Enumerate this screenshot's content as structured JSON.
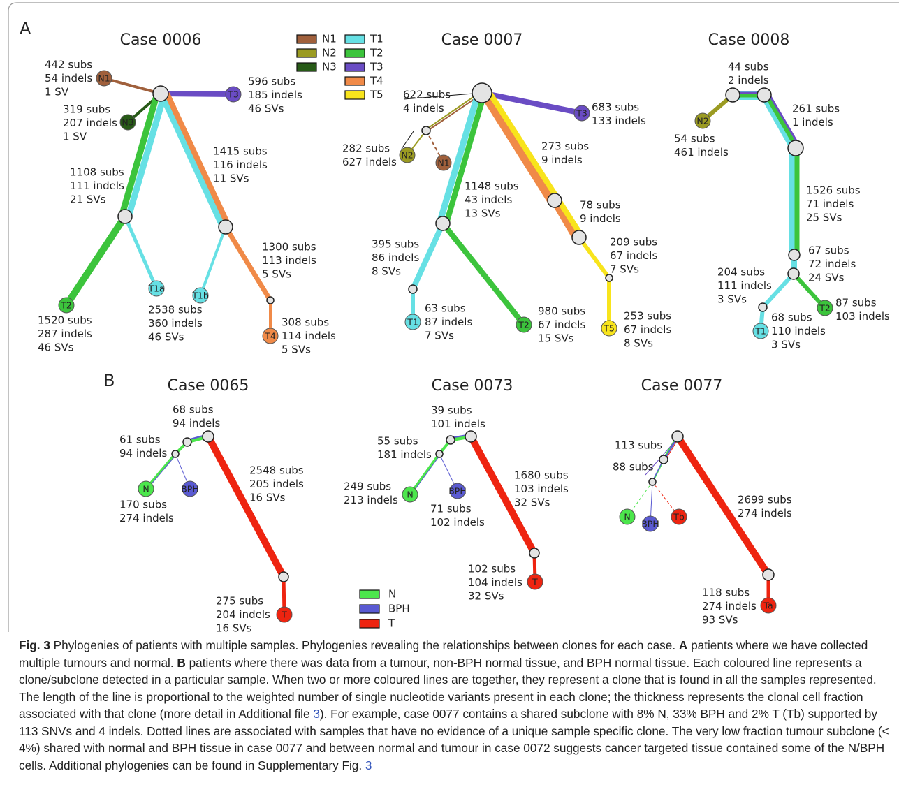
{
  "panels": [
    {
      "label": "A",
      "cases": [
        {
          "title": "Case 0006",
          "nodes": [
            "N1",
            "N3",
            "T3",
            "T2",
            "T1a",
            "T1b",
            "T4"
          ],
          "annotations": [
            [
              "442 subs",
              "54 indels",
              "1 SV"
            ],
            [
              "319 subs",
              "207 indels",
              "1 SV"
            ],
            [
              "596 subs",
              "185 indels",
              "46 SVs"
            ],
            [
              "1415 subs",
              "116 indels",
              "11 SVs"
            ],
            [
              "1108 subs",
              "111 indels",
              "21 SVs"
            ],
            [
              "1300 subs",
              "113 indels",
              "5 SVs"
            ],
            [
              "2538 subs",
              "360 indels",
              "46 SVs"
            ],
            [
              "1520 subs",
              "287 indels",
              "46 SVs"
            ],
            [
              "308 subs",
              "114 indels",
              "5 SVs"
            ]
          ]
        },
        {
          "title": "Case 0007",
          "nodes": [
            "T3",
            "N2",
            "N1",
            "T1",
            "T2",
            "T5"
          ],
          "annotations": [
            [
              "622 subs",
              "4 indels"
            ],
            [
              "282 subs",
              "627 indels"
            ],
            [
              "683 subs",
              "133 indels"
            ],
            [
              "273 subs",
              "9 indels"
            ],
            [
              "1148 subs",
              "43 indels",
              "13 SVs"
            ],
            [
              "78 subs",
              "9 indels"
            ],
            [
              "395 subs",
              "86 indels",
              "8 SVs"
            ],
            [
              "209 subs",
              "67 indels",
              "7 SVs"
            ],
            [
              "63 subs",
              "87 indels",
              "7 SVs"
            ],
            [
              "980 subs",
              "67 indels",
              "15 SVs"
            ],
            [
              "253 subs",
              "67 indels",
              "8 SVs"
            ]
          ]
        },
        {
          "title": "Case 0008",
          "nodes": [
            "N2",
            "T1",
            "T2"
          ],
          "annotations": [
            [
              "44 subs",
              "2 indels"
            ],
            [
              "261 subs",
              "1 indels"
            ],
            [
              "54 subs",
              "461 indels"
            ],
            [
              "1526 subs",
              "71 indels",
              "25 SVs"
            ],
            [
              "67 subs",
              "72 indels",
              "24 SVs"
            ],
            [
              "204 subs",
              "111 indels",
              "3 SVs"
            ],
            [
              "68 subs",
              "110 indels",
              "3 SVs"
            ],
            [
              "87 subs",
              "103 indels"
            ]
          ]
        }
      ]
    },
    {
      "label": "B",
      "cases": [
        {
          "title": "Case 0065",
          "nodes": [
            "N",
            "BPH",
            "T"
          ],
          "annotations": [
            [
              "68 subs",
              "94 indels"
            ],
            [
              "61 subs",
              "94 indels"
            ],
            [
              "2548 subs",
              "205 indels",
              "16 SVs"
            ],
            [
              "170 subs",
              "274 indels"
            ],
            [
              "275 subs",
              "204 indels",
              "16 SVs"
            ]
          ]
        },
        {
          "title": "Case 0073",
          "nodes": [
            "N",
            "BPH",
            "T"
          ],
          "annotations": [
            [
              "39 subs",
              "101 indels"
            ],
            [
              "55 subs",
              "181 indels"
            ],
            [
              "249 subs",
              "213 indels"
            ],
            [
              "1680 subs",
              "103 indels",
              "32 SVs"
            ],
            [
              "71 subs",
              "102 indels"
            ],
            [
              "102 subs",
              "104 indels",
              "32 SVs"
            ]
          ]
        },
        {
          "title": "Case 0077",
          "nodes": [
            "N",
            "BPH",
            "Tb",
            "Ta"
          ],
          "annotations": [
            [
              "113 subs"
            ],
            [
              "88 subs"
            ],
            [
              "2699 subs",
              "274 indels"
            ],
            [
              "118 subs",
              "274 indels",
              "93 SVs"
            ]
          ]
        }
      ]
    }
  ],
  "legend_a": [
    {
      "name": "N1",
      "color": "#a0603c"
    },
    {
      "name": "N2",
      "color": "#9b9b22"
    },
    {
      "name": "N3",
      "color": "#275a17"
    },
    {
      "name": "T1",
      "color": "#66e0e4"
    },
    {
      "name": "T2",
      "color": "#3cc43c"
    },
    {
      "name": "T3",
      "color": "#6a4cc4"
    },
    {
      "name": "T4",
      "color": "#f08a48"
    },
    {
      "name": "T5",
      "color": "#f8e41c"
    }
  ],
  "legend_b": [
    {
      "name": "N",
      "color": "#4ce64c"
    },
    {
      "name": "BPH",
      "color": "#5a5ad2"
    },
    {
      "name": "T",
      "color": "#ee2410"
    }
  ],
  "caption": [
    {
      "text": "Fig. 3",
      "bold": true
    },
    {
      "text": "  Phylogenies of patients with multiple samples. Phylogenies revealing the relationships between clones for each case. "
    },
    {
      "text": "A",
      "bold": true
    },
    {
      "text": " patients where we have collected multiple tumours and normal. "
    },
    {
      "text": "B",
      "bold": true
    },
    {
      "text": " patients where there was data from a tumour, non-BPH normal tissue, and BPH normal tissue. Each coloured line represents a clone/subclone detected in a particular sample. When two or more coloured lines are together, they represent a clone that is found in all the samples represented. The length of the line is proportional to the weighted number of single nucleotide variants present in each clone; the thickness represents the clonal cell fraction associated with that clone (more detail in Additional file "
    },
    {
      "text": "3",
      "link": true
    },
    {
      "text": "). For example, case 0077 contains a shared subclone with 8% N, 33% BPH and 2% T (Tb) supported by 113 SNVs and 4 indels. Dotted lines are associated with samples that have no evidence of a unique sample specific clone. The very low fraction tumour subclone (< 4%) shared with normal and BPH tissue in case 0077 and between normal and tumour in case 0072 suggests cancer targeted tissue contained some of the N/BPH cells. Additional phylogenies can be found in Supplementary Fig. "
    },
    {
      "text": "3",
      "link": true
    }
  ]
}
